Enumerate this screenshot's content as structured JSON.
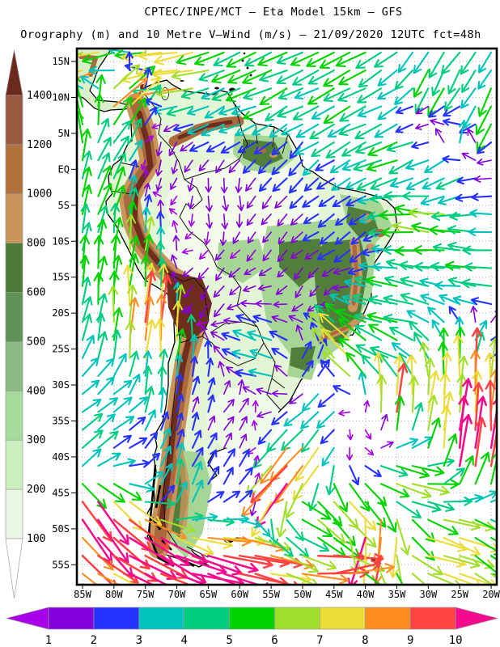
{
  "chart_data": {
    "type": "map_vector_field",
    "title": "CPTEC/INPE/MCT –  Eta Model 15km – GFS",
    "subtitle": "Orography (m) and 10 Metre V–Wind (m/s) – 21/09/2020 12UTC fct=48h",
    "region": "South America",
    "lat_ticks": [
      "15N",
      "10N",
      "5N",
      "EQ",
      "5S",
      "10S",
      "15S",
      "20S",
      "25S",
      "30S",
      "35S",
      "40S",
      "45S",
      "50S",
      "55S"
    ],
    "lon_ticks": [
      "85W",
      "80W",
      "75W",
      "70W",
      "65W",
      "60W",
      "55W",
      "50W",
      "45W",
      "40W",
      "35W",
      "30W",
      "25W",
      "20W"
    ],
    "orography_scale_m": {
      "levels": [
        100,
        200,
        300,
        400,
        500,
        600,
        800,
        1000,
        1200,
        1400
      ],
      "band_colors": [
        "#ffffff",
        "#eaf7e2",
        "#c9efbc",
        "#a5dc9c",
        "#8cba84",
        "#5d9355",
        "#4e7a36",
        "#c9955c",
        "#b0713d",
        "#9a5a41",
        "#6b2a1d"
      ]
    },
    "wind_speed_scale_ms": {
      "levels": [
        1,
        2,
        3,
        4,
        5,
        6,
        7,
        8,
        9,
        10
      ],
      "band_colors": [
        "#a800e8",
        "#8400dc",
        "#2632ff",
        "#00c4bc",
        "#00cd7e",
        "#00d300",
        "#a2df2c",
        "#ecdc38",
        "#ff8c20",
        "#ff4242",
        "#f40a8c"
      ]
    },
    "wind_vectors_format": [
      "lon_deg",
      "lat_deg",
      "u_ms",
      "v_ms"
    ],
    "wind_vectors": [
      [
        -83,
        14.5,
        -7.5,
        -2
      ],
      [
        -70,
        14,
        -8,
        -1.5
      ],
      [
        -57,
        13,
        -5,
        -2
      ],
      [
        -42,
        13.5,
        -4.5,
        -2.5
      ],
      [
        -28,
        12,
        -2.5,
        -4.5
      ],
      [
        -21,
        8,
        -2,
        -5
      ],
      [
        -30,
        7,
        -1.2,
        -0.3
      ],
      [
        -24,
        6.5,
        -2.2,
        0
      ],
      [
        -25,
        4,
        0.5,
        3.5
      ],
      [
        -27,
        0,
        -3.5,
        -2
      ],
      [
        -35,
        3,
        -4.5,
        -2
      ],
      [
        -47,
        6,
        -4,
        -2
      ],
      [
        -62,
        8,
        -3,
        -1.5
      ],
      [
        -50,
        2,
        -1.5,
        -2
      ],
      [
        -72,
        2,
        -0.5,
        -1.5
      ],
      [
        -63,
        -4,
        0.2,
        -1.5
      ],
      [
        -55,
        -8,
        -0.8,
        -1
      ],
      [
        -48,
        -16,
        -0.7,
        -1
      ],
      [
        -42,
        -9,
        -2,
        -1.5
      ],
      [
        -65,
        -17,
        -1,
        -1.5
      ],
      [
        -30,
        -8,
        -6,
        0.5
      ],
      [
        -22,
        -15,
        -4.5,
        0.5
      ],
      [
        -35,
        -20,
        -5,
        1
      ],
      [
        -43,
        -26,
        -5.5,
        5.5
      ],
      [
        -36,
        -26,
        -4.5,
        2
      ],
      [
        -47,
        -32,
        -3,
        -3
      ],
      [
        -40,
        -36,
        0.3,
        -0.5
      ],
      [
        -36,
        -33,
        0.5,
        8.5
      ],
      [
        -27,
        -33,
        1,
        7
      ],
      [
        -22,
        -31,
        0.5,
        9
      ],
      [
        -19,
        -25,
        2.5,
        1.5
      ],
      [
        -24,
        -38,
        0.5,
        10.5
      ],
      [
        -34,
        -43,
        6,
        -1.5
      ],
      [
        -50,
        -41,
        -6,
        -7
      ],
      [
        -53,
        -44,
        -7,
        -8
      ],
      [
        -43,
        -47,
        5,
        -5
      ],
      [
        -39,
        -51,
        -2.5,
        -10
      ],
      [
        -28,
        -53,
        7,
        -2.5
      ],
      [
        -20,
        -54,
        5,
        -3.5
      ],
      [
        -45,
        -56,
        10,
        1
      ],
      [
        -60,
        -55,
        10.5,
        -2
      ],
      [
        -68,
        -57,
        10,
        -3
      ],
      [
        -75,
        -52,
        9,
        -5
      ],
      [
        -84,
        -47,
        6,
        -8.5
      ],
      [
        -84,
        -40,
        3,
        2.5
      ],
      [
        -80,
        -34,
        2.5,
        2
      ],
      [
        -74,
        -31,
        0.5,
        4
      ],
      [
        -73.5,
        -23,
        0.5,
        9
      ],
      [
        -78,
        -14,
        0.5,
        6
      ],
      [
        -84,
        -4,
        1.5,
        5
      ],
      [
        -85,
        7,
        -2,
        6
      ],
      [
        -80,
        4,
        2.5,
        4
      ],
      [
        -79,
        9.5,
        5.5,
        5
      ],
      [
        -70,
        -44,
        1,
        3.5
      ],
      [
        -60,
        -43,
        1.5,
        2.5
      ],
      [
        -68,
        -33,
        0.5,
        2
      ],
      [
        -56,
        -26,
        -3.5,
        1
      ],
      [
        -48,
        -28,
        2,
        2.5
      ],
      [
        -62,
        -35,
        1,
        1.5
      ],
      [
        -50,
        -47,
        5.5,
        -2.5
      ]
    ],
    "grid_spacing_deg": 2.5,
    "legend_position": {
      "orography": "left",
      "wind_speed": "bottom"
    },
    "grid": "dotted 5-degree graticule"
  }
}
